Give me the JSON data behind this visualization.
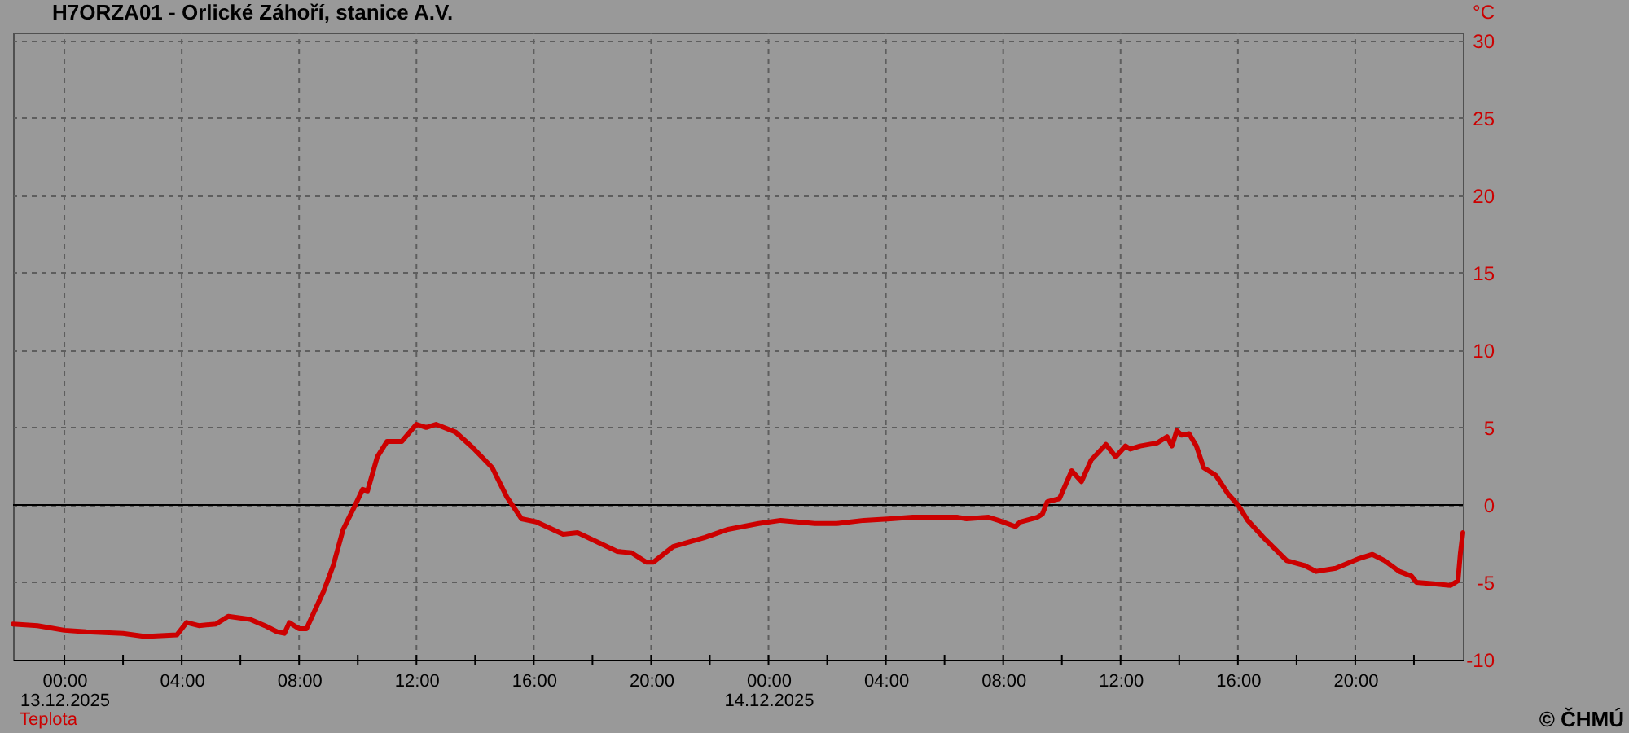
{
  "chart_data": {
    "type": "line",
    "title": "H7ORZA01 - Orlické Záhoří, stanice A.V.",
    "ylabel": "°C",
    "x": [
      "2025-12-12T22:15",
      "2025-12-12T23:05",
      "2025-12-13T00:00",
      "2025-12-13T00:45",
      "2025-12-13T02:00",
      "2025-12-13T02:45",
      "2025-12-13T03:50",
      "2025-12-13T04:10",
      "2025-12-13T04:35",
      "2025-12-13T05:10",
      "2025-12-13T05:35",
      "2025-12-13T06:20",
      "2025-12-13T06:50",
      "2025-12-13T07:15",
      "2025-12-13T07:30",
      "2025-12-13T07:40",
      "2025-12-13T08:00",
      "2025-12-13T08:15",
      "2025-12-13T08:50",
      "2025-12-13T09:10",
      "2025-12-13T09:30",
      "2025-12-13T09:55",
      "2025-12-13T10:10",
      "2025-12-13T10:20",
      "2025-12-13T10:40",
      "2025-12-13T11:00",
      "2025-12-13T11:30",
      "2025-12-13T12:00",
      "2025-12-13T12:20",
      "2025-12-13T12:40",
      "2025-12-13T13:20",
      "2025-12-13T13:55",
      "2025-12-13T14:35",
      "2025-12-13T15:05",
      "2025-12-13T15:35",
      "2025-12-13T16:05",
      "2025-12-13T17:00",
      "2025-12-13T17:30",
      "2025-12-13T18:10",
      "2025-12-13T18:50",
      "2025-12-13T19:20",
      "2025-12-13T19:50",
      "2025-12-13T20:05",
      "2025-12-13T20:45",
      "2025-12-13T21:50",
      "2025-12-13T22:35",
      "2025-12-13T23:40",
      "2025-12-14T00:25",
      "2025-12-14T01:35",
      "2025-12-14T02:20",
      "2025-12-14T03:15",
      "2025-12-14T04:10",
      "2025-12-14T04:55",
      "2025-12-14T06:25",
      "2025-12-14T06:45",
      "2025-12-14T07:30",
      "2025-12-14T07:50",
      "2025-12-14T08:25",
      "2025-12-14T08:35",
      "2025-12-14T09:10",
      "2025-12-14T09:20",
      "2025-12-14T09:30",
      "2025-12-14T09:55",
      "2025-12-14T10:20",
      "2025-12-14T10:40",
      "2025-12-14T11:00",
      "2025-12-14T11:30",
      "2025-12-14T11:50",
      "2025-12-14T12:10",
      "2025-12-14T12:20",
      "2025-12-14T12:40",
      "2025-12-14T13:15",
      "2025-12-14T13:35",
      "2025-12-14T13:45",
      "2025-12-14T13:55",
      "2025-12-14T14:05",
      "2025-12-14T14:20",
      "2025-12-14T14:35",
      "2025-12-14T14:50",
      "2025-12-14T15:15",
      "2025-12-14T15:40",
      "2025-12-14T16:00",
      "2025-12-14T16:20",
      "2025-12-14T16:55",
      "2025-12-14T17:40",
      "2025-12-14T18:15",
      "2025-12-14T18:40",
      "2025-12-14T19:20",
      "2025-12-14T20:05",
      "2025-12-14T20:35",
      "2025-12-14T21:00",
      "2025-12-14T21:30",
      "2025-12-14T21:55",
      "2025-12-14T22:05",
      "2025-12-14T22:40",
      "2025-12-14T23:15",
      "2025-12-14T23:30",
      "2025-12-14T23:35",
      "2025-12-14T23:40"
    ],
    "series": [
      {
        "name": "Teplota",
        "color": "#cc0000",
        "values": [
          -7.7,
          -7.8,
          -8.1,
          -8.2,
          -8.3,
          -8.5,
          -8.4,
          -7.6,
          -7.8,
          -7.7,
          -7.2,
          -7.4,
          -7.8,
          -8.2,
          -8.3,
          -7.6,
          -8.0,
          -8.0,
          -5.6,
          -3.9,
          -1.6,
          0.0,
          1.0,
          0.9,
          3.1,
          4.1,
          4.1,
          5.2,
          5.0,
          5.2,
          4.7,
          3.7,
          2.4,
          0.5,
          -0.9,
          -1.1,
          -1.9,
          -1.8,
          -2.4,
          -3.0,
          -3.1,
          -3.7,
          -3.7,
          -2.7,
          -2.1,
          -1.6,
          -1.2,
          -1.0,
          -1.2,
          -1.2,
          -1.0,
          -0.9,
          -0.8,
          -0.8,
          -0.9,
          -0.8,
          -1.0,
          -1.4,
          -1.1,
          -0.8,
          -0.6,
          0.2,
          0.4,
          2.2,
          1.5,
          2.9,
          3.9,
          3.1,
          3.8,
          3.6,
          3.8,
          4.0,
          4.4,
          3.8,
          4.8,
          4.5,
          4.6,
          3.8,
          2.4,
          1.9,
          0.7,
          0.0,
          -1.0,
          -2.2,
          -3.6,
          -3.9,
          -4.3,
          -4.1,
          -3.5,
          -3.2,
          -3.6,
          -4.3,
          -4.6,
          -5.0,
          -5.1,
          -5.2,
          -4.9,
          -3.1,
          -1.8
        ]
      }
    ],
    "xlim": [
      "2025-12-12T22:15",
      "2025-12-14T23:40"
    ],
    "xticks": [
      {
        "value": "2025-12-13T00:00",
        "label": "00:00\n13.12.2025"
      },
      {
        "value": "2025-12-13T02:00",
        "label": null
      },
      {
        "value": "2025-12-13T04:00",
        "label": "04:00"
      },
      {
        "value": "2025-12-13T06:00",
        "label": null
      },
      {
        "value": "2025-12-13T08:00",
        "label": "08:00"
      },
      {
        "value": "2025-12-13T10:00",
        "label": null
      },
      {
        "value": "2025-12-13T12:00",
        "label": "12:00"
      },
      {
        "value": "2025-12-13T14:00",
        "label": null
      },
      {
        "value": "2025-12-13T16:00",
        "label": "16:00"
      },
      {
        "value": "2025-12-13T18:00",
        "label": null
      },
      {
        "value": "2025-12-13T20:00",
        "label": "20:00"
      },
      {
        "value": "2025-12-13T22:00",
        "label": null
      },
      {
        "value": "2025-12-14T00:00",
        "label": "00:00\n14.12.2025"
      },
      {
        "value": "2025-12-14T02:00",
        "label": null
      },
      {
        "value": "2025-12-14T04:00",
        "label": "04:00"
      },
      {
        "value": "2025-12-14T06:00",
        "label": null
      },
      {
        "value": "2025-12-14T08:00",
        "label": "08:00"
      },
      {
        "value": "2025-12-14T10:00",
        "label": null
      },
      {
        "value": "2025-12-14T12:00",
        "label": "12:00"
      },
      {
        "value": "2025-12-14T14:00",
        "label": null
      },
      {
        "value": "2025-12-14T16:00",
        "label": "16:00"
      },
      {
        "value": "2025-12-14T18:00",
        "label": null
      },
      {
        "value": "2025-12-14T20:00",
        "label": "20:00"
      },
      {
        "value": "2025-12-14T22:00",
        "label": null
      }
    ],
    "ylim": [
      -10,
      30.5
    ],
    "yticks": [
      -10,
      -5,
      0,
      5,
      10,
      15,
      20,
      25,
      30
    ],
    "grid": true,
    "legend": "bottom left",
    "line_style": "solid",
    "ref_lines": [
      {
        "axis": "y",
        "value": 0,
        "color": "#000000"
      }
    ],
    "annotations": [
      "© ČHMÚ"
    ]
  }
}
